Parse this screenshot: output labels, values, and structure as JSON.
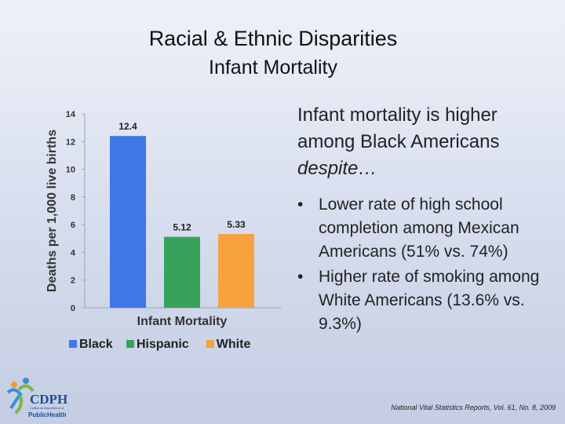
{
  "slide": {
    "title": "Racial & Ethnic Disparities",
    "subtitle": "Infant Mortality",
    "intro_line1": "Infant mortality is higher",
    "intro_line2": "among Black Americans",
    "intro_line3": "despite…",
    "bullets": [
      "Lower rate of high school completion among Mexican Americans (51% vs. 74%)",
      "Higher rate of smoking among White Americans (13.6% vs. 9.3%)"
    ],
    "bullet_glyph": "•",
    "citation": "National Vital Statistics Reports, Vol. 61, No. 8, 2009",
    "logo_text": "CDPH",
    "logo_subtext": "PublicHealth",
    "logo_fineprint": "California Department of"
  },
  "chart_data": {
    "type": "bar",
    "categories": [
      "Infant Mortality"
    ],
    "xlabel": "Infant Mortality",
    "ylabel": "Deaths per 1,000 live births",
    "ylim": [
      0,
      14
    ],
    "yticks": [
      0,
      2,
      4,
      6,
      8,
      10,
      12,
      14
    ],
    "grid": false,
    "legend_position": "bottom",
    "series": [
      {
        "name": "Black",
        "values": [
          12.4
        ],
        "label": "12.4",
        "color": "#3f77e8"
      },
      {
        "name": "Hispanic",
        "values": [
          5.12
        ],
        "label": "5.12",
        "color": "#37a35a"
      },
      {
        "name": "White",
        "values": [
          5.33
        ],
        "label": "5.33",
        "color": "#f7a23e"
      }
    ]
  }
}
